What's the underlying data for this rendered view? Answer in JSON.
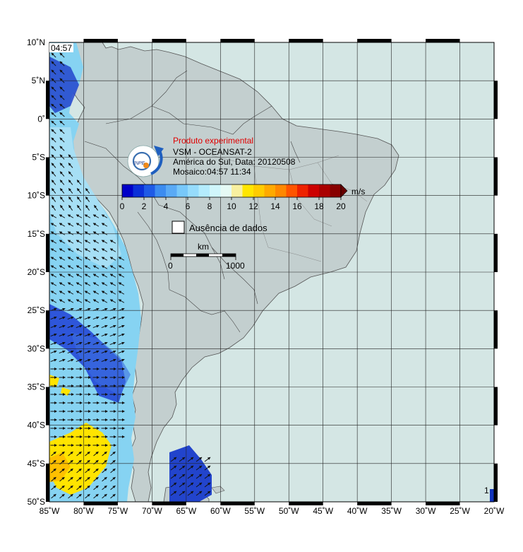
{
  "map": {
    "time_stamp": "04:57",
    "corner_label": "1",
    "lat_labels": [
      "10˚N",
      "5˚N",
      "0˚",
      "5˚S",
      "10˚S",
      "15˚S",
      "20˚S",
      "25˚S",
      "30˚S",
      "35˚S",
      "40˚S",
      "45˚S",
      "50˚S"
    ],
    "lon_labels": [
      "85˚W",
      "80˚W",
      "75˚W",
      "70˚W",
      "65˚W",
      "60˚W",
      "55˚W",
      "50˚W",
      "45˚W",
      "40˚W",
      "35˚W",
      "30˚W",
      "25˚W",
      "20˚W"
    ],
    "colors": {
      "ocean": "#d4e6e4",
      "land": "#c3cfcf",
      "wind_blue_dark": "#1e3fd6",
      "wind_light_blue": "#7ccff0",
      "wind_yellow": "#ffe400"
    }
  },
  "legend": {
    "title": "Produto experimental",
    "line1": "VSM - OCEANSAT-2",
    "line2": "América do Sul, Data: 20120508",
    "line3": "Mosaico:04:57 11:34",
    "unit": "m/s",
    "ticks": [
      "0",
      "2",
      "4",
      "6",
      "8",
      "10",
      "12",
      "14",
      "16",
      "18",
      "20"
    ],
    "colors": [
      "#0000c8",
      "#0a2fd8",
      "#1e5ae6",
      "#3c8cf0",
      "#5aaaf5",
      "#78c8fa",
      "#96dcfc",
      "#b4ecfd",
      "#d0f6fb",
      "#e6faf5",
      "#f8f0a0",
      "#ffe600",
      "#ffcc00",
      "#ffaa00",
      "#ff8800",
      "#ff5500",
      "#ee2200",
      "#cc0000",
      "#aa0000",
      "#880000"
    ],
    "no_data_label": "Ausência de dados",
    "scale_title": "km",
    "scale_start": "0",
    "scale_end": "1000",
    "logo_text": "INPE"
  }
}
